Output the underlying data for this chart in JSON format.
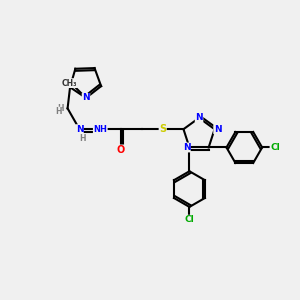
{
  "bg_color": "#f0f0f0",
  "bond_color": "#000000",
  "atom_colors": {
    "N": "#0000ff",
    "O": "#ff0000",
    "S": "#cccc00",
    "Cl": "#00aa00",
    "C": "#000000",
    "H": "#7f7f7f"
  },
  "title": "",
  "figsize": [
    3.0,
    3.0
  ],
  "dpi": 100
}
